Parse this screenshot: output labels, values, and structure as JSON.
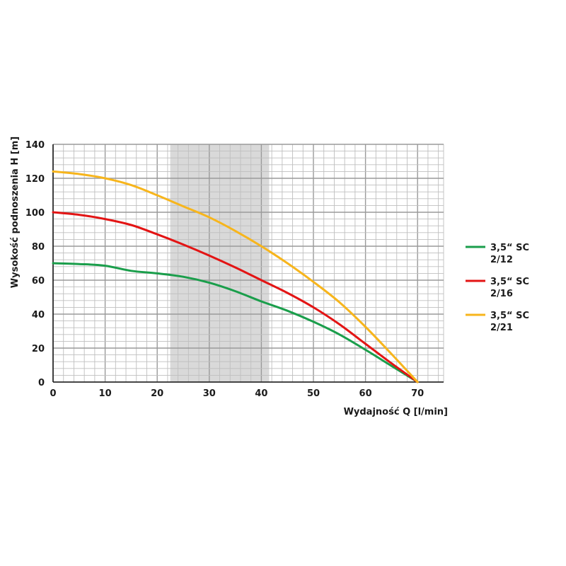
{
  "chart_data": {
    "type": "line",
    "title": "",
    "xlabel": "Wydajność Q [l/min]",
    "ylabel": "Wysokość podnoszenia H [m]",
    "xlim": [
      0,
      75
    ],
    "ylim": [
      0,
      140
    ],
    "x_ticks": [
      0,
      10,
      20,
      30,
      40,
      50,
      60,
      70
    ],
    "y_ticks": [
      0,
      20,
      40,
      60,
      80,
      100,
      120,
      140
    ],
    "grid": true,
    "legend_position": "right",
    "highlight_band": {
      "x_from": 22.5,
      "x_to": 41.5,
      "color": "#d9d9d9"
    },
    "series": [
      {
        "name": "3,5“ SC 2/12",
        "legend_lines": [
          "3,5“ SC",
          "2/12"
        ],
        "color": "#1a9e4b",
        "x": [
          0,
          5,
          10,
          15,
          20,
          25,
          30,
          35,
          40,
          45,
          50,
          55,
          60,
          65,
          70
        ],
        "y": [
          70,
          69.5,
          68.5,
          65.5,
          64,
          62,
          58.5,
          53.5,
          47.5,
          42,
          35.5,
          28,
          19,
          9.5,
          0
        ]
      },
      {
        "name": "3,5“ SC 2/16",
        "legend_lines": [
          "3,5“ SC",
          "2/16"
        ],
        "color": "#e31414",
        "x": [
          0,
          5,
          10,
          15,
          20,
          25,
          30,
          35,
          40,
          45,
          50,
          55,
          60,
          65,
          70
        ],
        "y": [
          100,
          98.5,
          96,
          92.5,
          87,
          81,
          74.5,
          67.5,
          60,
          52.5,
          44,
          34,
          22.5,
          11,
          0
        ]
      },
      {
        "name": "3,5“ SC 2/21",
        "legend_lines": [
          "3,5“ SC",
          "2/21"
        ],
        "color": "#f7b51c",
        "x": [
          0,
          5,
          10,
          15,
          20,
          25,
          30,
          35,
          40,
          45,
          50,
          55,
          60,
          65,
          70
        ],
        "y": [
          124,
          122.5,
          120,
          116,
          110,
          103.5,
          97,
          89,
          80,
          70,
          59,
          47,
          32.5,
          16.5,
          0
        ]
      }
    ]
  }
}
